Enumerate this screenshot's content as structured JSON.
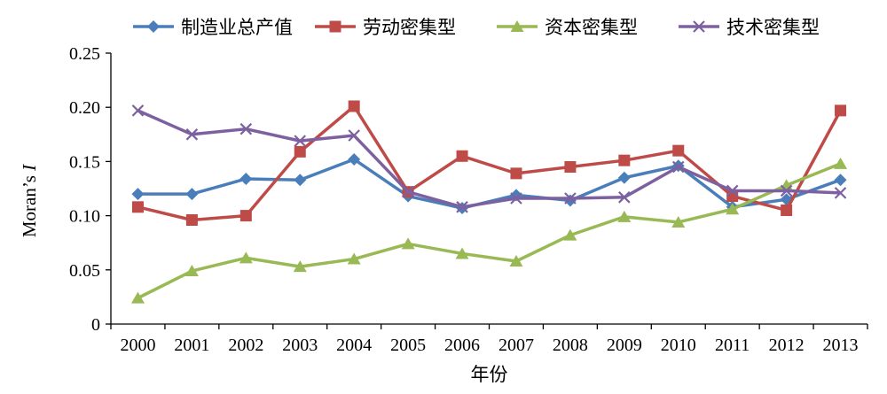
{
  "chart_data": {
    "type": "line",
    "title": "",
    "xlabel": "年份",
    "ylabel_main": "Moran’s ",
    "ylabel_italic": "I",
    "ylim": [
      0,
      0.25
    ],
    "yticks": [
      "0",
      "0.05",
      "0.10",
      "0.15",
      "0.20",
      "0.25"
    ],
    "categories": [
      "2000",
      "2001",
      "2002",
      "2003",
      "2004",
      "2005",
      "2006",
      "2007",
      "2008",
      "2009",
      "2010",
      "2011",
      "2012",
      "2013"
    ],
    "legend_position": "top",
    "grid": false,
    "series": [
      {
        "name": "制造业总产值",
        "color": "#4a7ebb",
        "marker": "diamond",
        "values": [
          0.12,
          0.12,
          0.134,
          0.133,
          0.152,
          0.118,
          0.107,
          0.119,
          0.114,
          0.135,
          0.146,
          0.108,
          0.115,
          0.133
        ]
      },
      {
        "name": "劳动密集型",
        "color": "#be4b48",
        "marker": "square",
        "values": [
          0.108,
          0.096,
          0.1,
          0.159,
          0.201,
          0.122,
          0.155,
          0.139,
          0.145,
          0.151,
          0.16,
          0.118,
          0.105,
          0.197
        ]
      },
      {
        "name": "资本密集型",
        "color": "#98b954",
        "marker": "triangle",
        "values": [
          0.024,
          0.049,
          0.061,
          0.053,
          0.06,
          0.074,
          0.065,
          0.058,
          0.082,
          0.099,
          0.094,
          0.106,
          0.128,
          0.148
        ]
      },
      {
        "name": "技术密集型",
        "color": "#7d60a0",
        "marker": "x",
        "values": [
          0.197,
          0.175,
          0.18,
          0.169,
          0.174,
          0.122,
          0.108,
          0.116,
          0.116,
          0.117,
          0.145,
          0.123,
          0.123,
          0.121
        ]
      }
    ]
  }
}
